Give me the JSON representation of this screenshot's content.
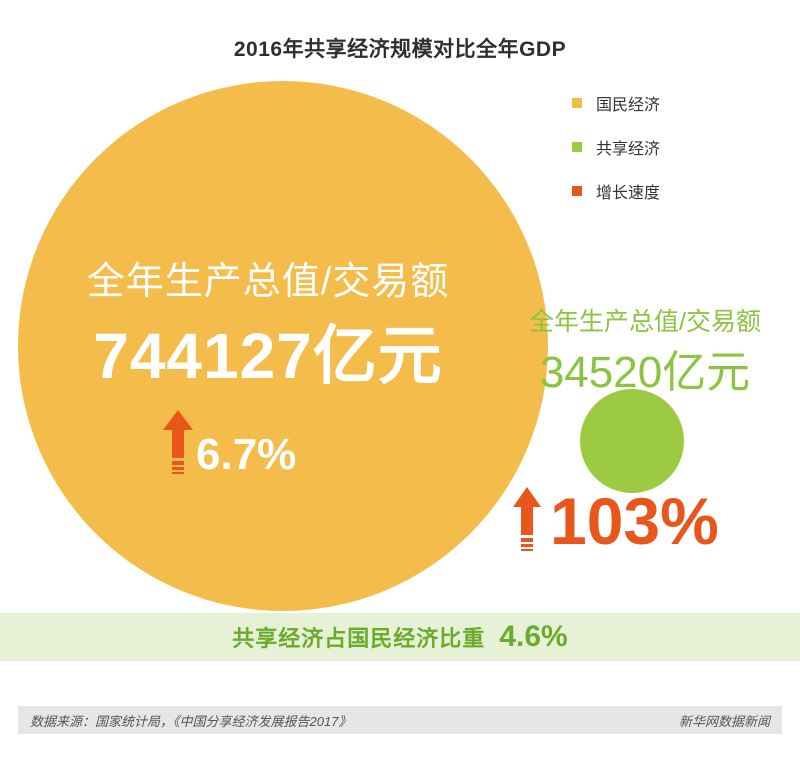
{
  "chart_data": {
    "type": "bubble",
    "title": "2016年共享经济规模对比全年GDP",
    "legend": [
      {
        "label": "国民经济",
        "color": "#f4bc4a"
      },
      {
        "label": "共享经济",
        "color": "#9ccb43"
      },
      {
        "label": "增长速度",
        "color": "#e8561b"
      }
    ],
    "series": [
      {
        "name": "国民经济",
        "metric_label": "全年生产总值/交易额",
        "value": 744127,
        "value_text": "744127亿元",
        "growth": 6.7,
        "growth_text": "6.7%",
        "color": "#f4bc4a"
      },
      {
        "name": "共享经济",
        "metric_label": "全年生产总值/交易额",
        "value": 34520,
        "value_text": "34520亿元",
        "growth": 103,
        "growth_text": "103%",
        "color": "#9ccb43"
      }
    ],
    "share_label": "共享经济占国民经济比重",
    "share_text": "4.6%",
    "share": 4.6
  },
  "footer": {
    "source": "数据来源：国家统计局，《中国分享经济发展报告2017》",
    "credit": "新华网数据新闻"
  },
  "colors": {
    "growth_arrow": "#e8561b",
    "banner_bg": "#e6f1d6"
  }
}
